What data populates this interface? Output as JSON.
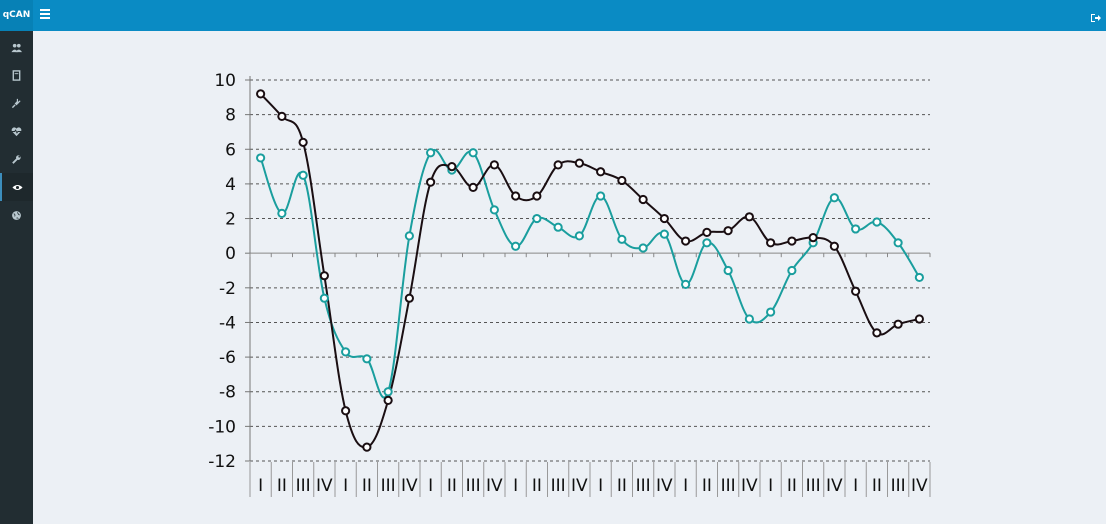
{
  "app": {
    "brand": "qCAN"
  },
  "sidebar": {
    "items": [
      {
        "icon": "users-icon"
      },
      {
        "icon": "book-icon"
      },
      {
        "icon": "plug-icon"
      },
      {
        "icon": "heartbeat-icon"
      },
      {
        "icon": "wrench-icon"
      },
      {
        "icon": "eye-icon",
        "active": true
      },
      {
        "icon": "globe-icon"
      }
    ]
  },
  "header": {
    "menu_icon": "hamburger-icon",
    "logout_icon": "sign-out-icon"
  },
  "colors": {
    "topbar": "#0a8bc4",
    "sidebar": "#222d32",
    "series_teal": "#1a9e9e",
    "series_black": "#1a0e12"
  },
  "chart_data": {
    "type": "line",
    "title": "",
    "xlabel": "",
    "ylabel": "",
    "ylim": [
      -12,
      10
    ],
    "yticks": [
      10,
      8,
      6,
      4,
      2,
      0,
      -2,
      -4,
      -6,
      -8,
      -10,
      -12
    ],
    "grid": "horizontal dashed",
    "categories": [
      "I",
      "II",
      "III",
      "IV",
      "I",
      "II",
      "III",
      "IV",
      "I",
      "II",
      "III",
      "IV",
      "I",
      "II",
      "III",
      "IV",
      "I",
      "II",
      "III",
      "IV",
      "I",
      "II",
      "III",
      "IV",
      "I",
      "II",
      "III",
      "IV",
      "I",
      "II",
      "III",
      "IV"
    ],
    "series": [
      {
        "color": "#1a9e9e",
        "values": [
          5.5,
          2.3,
          4.5,
          -2.6,
          -5.7,
          -6.1,
          -8.0,
          1.0,
          5.8,
          4.8,
          5.8,
          2.5,
          0.4,
          2.0,
          1.5,
          1.0,
          3.3,
          0.8,
          0.3,
          1.1,
          -1.8,
          0.6,
          -1.0,
          -3.8,
          -3.4,
          -1.0,
          0.6,
          3.2,
          1.4,
          1.8,
          0.6,
          -1.4
        ]
      },
      {
        "color": "#1a0e12",
        "values": [
          9.2,
          7.9,
          6.4,
          -1.3,
          -9.1,
          -11.2,
          -8.5,
          -2.6,
          4.1,
          5.0,
          3.8,
          5.1,
          3.3,
          3.3,
          5.1,
          5.2,
          4.7,
          4.2,
          3.1,
          2.0,
          0.7,
          1.2,
          1.3,
          2.1,
          0.6,
          0.7,
          0.9,
          0.4,
          -2.2,
          -4.6,
          -4.1,
          -3.8
        ]
      }
    ]
  }
}
